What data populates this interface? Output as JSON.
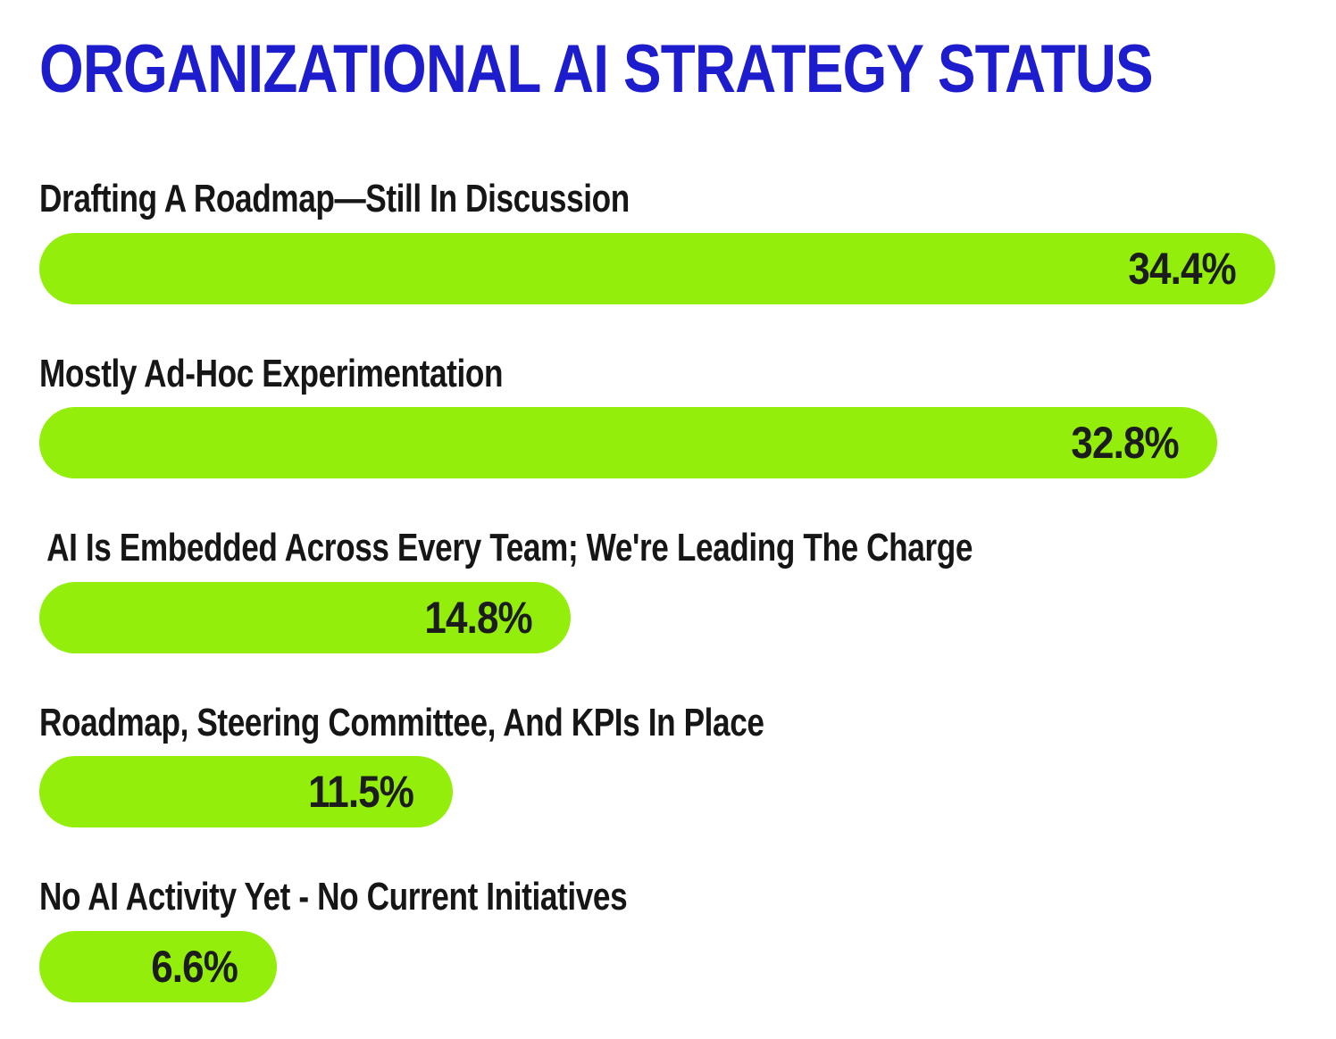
{
  "title": "ORGANIZATIONAL AI STRATEGY STATUS",
  "colors": {
    "title_blue": "#1d1dce",
    "bar_green": "#92ee0a",
    "label_black": "#161616",
    "background": "#ffffff"
  },
  "chart_data": {
    "type": "bar",
    "orientation": "horizontal",
    "title": "ORGANIZATIONAL AI STRATEGY STATUS",
    "categories": [
      "Drafting A Roadmap—Still In Discussion",
      "Mostly Ad-Hoc Experimentation",
      " AI Is Embedded Across Every Team; We're Leading The Charge",
      "Roadmap, Steering Committee, And KPIs In Place",
      "No AI Activity Yet - No Current Initiatives"
    ],
    "values": [
      34.4,
      32.8,
      14.8,
      11.5,
      6.6
    ],
    "value_labels": [
      "34.4%",
      "32.8%",
      "14.8%",
      "11.5%",
      "6.6%"
    ],
    "unit": "%",
    "xlim": [
      0,
      35
    ],
    "grid": false,
    "legend": false,
    "value_label_position": "inside-right",
    "bar_shape": "pill"
  }
}
